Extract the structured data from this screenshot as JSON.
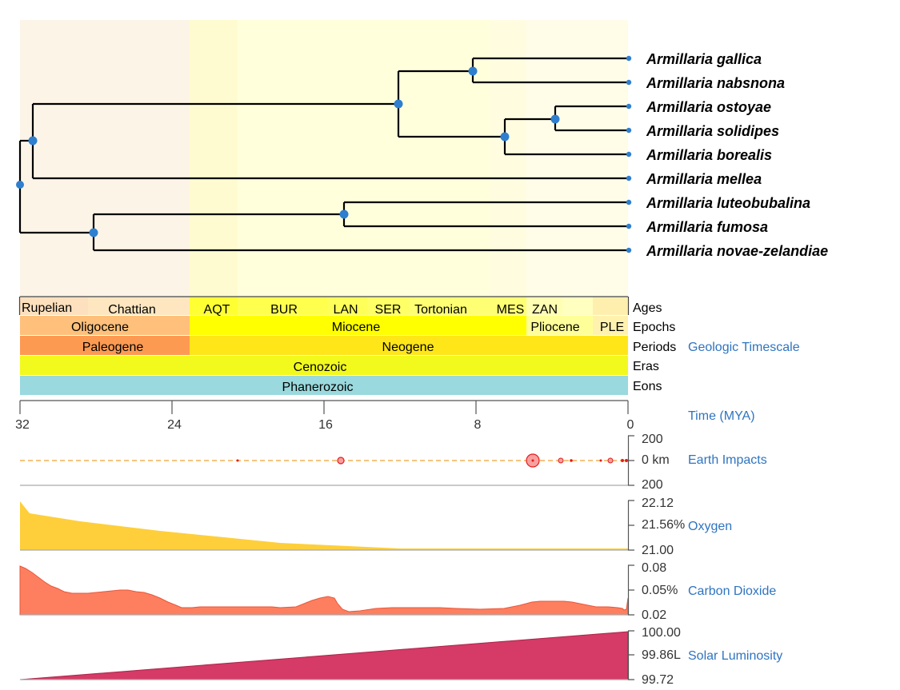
{
  "tree": {
    "taxa": [
      {
        "name": "Armillaria gallica"
      },
      {
        "name": "Armillaria nabsnona"
      },
      {
        "name": "Armillaria ostoyae"
      },
      {
        "name": "Armillaria solidipes"
      },
      {
        "name": "Armillaria borealis"
      },
      {
        "name": "Armillaria mellea"
      },
      {
        "name": "Armillaria luteobubalina"
      },
      {
        "name": "Armillaria fumosa"
      },
      {
        "name": "Armillaria novae-zelandiae"
      }
    ],
    "colors": {
      "node": "#2f7fd0",
      "branch": "#000000"
    }
  },
  "timescale": {
    "rows": {
      "ages": [
        {
          "name": "Rupelian",
          "color": "#fde0bd"
        },
        {
          "name": "Chattian",
          "color": "#fde6c0"
        },
        {
          "name": "AQT",
          "color": "#ffff33"
        },
        {
          "name": "BUR",
          "color": "#ffff4d"
        },
        {
          "name": "LAN",
          "color": "#ffff5a"
        },
        {
          "name": "SER",
          "color": "#ffff66"
        },
        {
          "name": "Tortonian",
          "color": "#ffff73"
        },
        {
          "name": "MES",
          "color": "#ffff73"
        },
        {
          "name": "ZAN",
          "color": "#ffffb3"
        },
        {
          "name": "",
          "color": "#ffffbf"
        },
        {
          "name": "",
          "color": "#ffffcc"
        },
        {
          "name": "",
          "color": "#ffefaf"
        }
      ],
      "epochs": [
        {
          "name": "Oligocene",
          "color": "#fec07a"
        },
        {
          "name": "Miocene",
          "color": "#ffff00"
        },
        {
          "name": "Pliocene",
          "color": "#ffff99"
        },
        {
          "name": "PLE",
          "color": "#fff2ae"
        }
      ],
      "periods": [
        {
          "name": "Paleogene",
          "color": "#fd9a52"
        },
        {
          "name": "Neogene",
          "color": "#ffe619"
        }
      ],
      "eras": [
        {
          "name": "Cenozoic",
          "color": "#f2f91d"
        }
      ],
      "eons": [
        {
          "name": "Phanerozoic",
          "color": "#9ad9dd"
        }
      ]
    },
    "row_labels": [
      "Ages",
      "Epochs",
      "Periods",
      "Eras",
      "Eons"
    ],
    "link": "Geologic Timescale"
  },
  "time_axis": {
    "ticks": [
      "32",
      "24",
      "16",
      "8",
      "0"
    ],
    "link": "Time (MYA)"
  },
  "panels": {
    "impacts": {
      "link": "Earth Impacts",
      "ticks": [
        "200",
        "0 km",
        "200"
      ],
      "color": "#e51b1b"
    },
    "oxygen": {
      "link": "Oxygen",
      "ticks": [
        "22.12",
        "21.56%",
        "21.00"
      ],
      "color": "#fecf3a"
    },
    "co2": {
      "link": "Carbon Dioxide",
      "ticks": [
        "0.08",
        "0.05%",
        "0.02"
      ],
      "color": "#fe7f5f"
    },
    "solar": {
      "link": "Solar Luminosity",
      "ticks": [
        "100.00",
        "99.86L",
        "99.72"
      ],
      "color": "#d63a66"
    }
  }
}
